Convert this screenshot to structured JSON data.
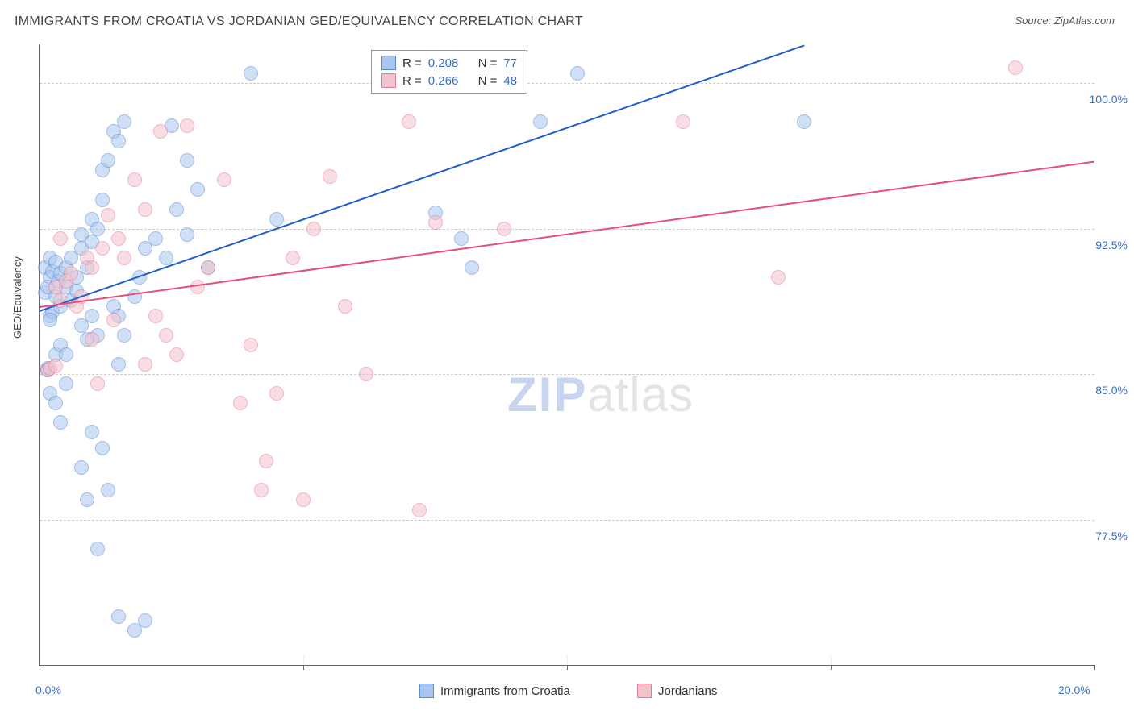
{
  "title": "IMMIGRANTS FROM CROATIA VS JORDANIAN GED/EQUIVALENCY CORRELATION CHART",
  "source": "Source: ZipAtlas.com",
  "ylabel": "GED/Equivalency",
  "watermark_zip": "ZIP",
  "watermark_atlas": "atlas",
  "chart": {
    "type": "scatter",
    "xlim": [
      0,
      20
    ],
    "ylim": [
      70,
      102
    ],
    "background_color": "#ffffff",
    "grid_color": "#cccccc",
    "axis_color": "#666666",
    "x_ticks": [
      0,
      5,
      10,
      15,
      20
    ],
    "x_tick_labels": {
      "0": "0.0%",
      "20": "20.0%"
    },
    "y_grid_values": [
      77.5,
      85.0,
      92.5,
      100.0
    ],
    "y_tick_labels": [
      "77.5%",
      "85.0%",
      "92.5%",
      "100.0%"
    ],
    "tick_label_color": "#3b6fc9",
    "tick_label_fontsize": 14,
    "point_radius": 9,
    "point_opacity": 0.55,
    "series": [
      {
        "name": "Immigrants from Croatia",
        "fill_color": "#a9c6ee",
        "stroke_color": "#5a8ad0",
        "trend_color": "#1f5fc9",
        "R": "0.208",
        "N": "77",
        "trend": {
          "x1": 0,
          "y1": 88.3,
          "x2": 14.5,
          "y2": 102
        },
        "points": [
          [
            0.1,
            90.5
          ],
          [
            0.1,
            89.2
          ],
          [
            0.2,
            88.0
          ],
          [
            0.2,
            90.0
          ],
          [
            0.15,
            89.5
          ],
          [
            0.2,
            91.0
          ],
          [
            0.25,
            90.3
          ],
          [
            0.3,
            90.8
          ],
          [
            0.3,
            89.0
          ],
          [
            0.25,
            88.2
          ],
          [
            0.35,
            89.8
          ],
          [
            0.4,
            90.2
          ],
          [
            0.4,
            88.5
          ],
          [
            0.5,
            89.5
          ],
          [
            0.5,
            90.5
          ],
          [
            0.6,
            91.0
          ],
          [
            0.6,
            88.8
          ],
          [
            0.7,
            90.0
          ],
          [
            0.7,
            89.3
          ],
          [
            0.8,
            91.5
          ],
          [
            0.8,
            92.2
          ],
          [
            0.9,
            90.5
          ],
          [
            1.0,
            91.8
          ],
          [
            1.0,
            93.0
          ],
          [
            1.1,
            92.5
          ],
          [
            1.2,
            94.0
          ],
          [
            1.2,
            95.5
          ],
          [
            1.3,
            96.0
          ],
          [
            1.4,
            97.5
          ],
          [
            1.5,
            97.0
          ],
          [
            1.6,
            98.0
          ],
          [
            1.1,
            87.0
          ],
          [
            0.3,
            86.0
          ],
          [
            0.15,
            85.3
          ],
          [
            0.15,
            85.2
          ],
          [
            0.4,
            86.5
          ],
          [
            0.5,
            86.0
          ],
          [
            0.8,
            87.5
          ],
          [
            0.9,
            86.8
          ],
          [
            1.0,
            88.0
          ],
          [
            1.4,
            88.5
          ],
          [
            1.5,
            88.0
          ],
          [
            1.6,
            87.0
          ],
          [
            1.8,
            89.0
          ],
          [
            1.9,
            90.0
          ],
          [
            2.0,
            91.5
          ],
          [
            2.2,
            92.0
          ],
          [
            2.4,
            91.0
          ],
          [
            2.6,
            93.5
          ],
          [
            2.8,
            92.2
          ],
          [
            1.0,
            82.0
          ],
          [
            1.2,
            81.2
          ],
          [
            1.3,
            79.0
          ],
          [
            0.8,
            80.2
          ],
          [
            0.9,
            78.5
          ],
          [
            1.1,
            76.0
          ],
          [
            1.5,
            72.5
          ],
          [
            2.0,
            72.3
          ],
          [
            1.8,
            71.8
          ],
          [
            0.2,
            84.0
          ],
          [
            0.3,
            83.5
          ],
          [
            0.4,
            82.5
          ],
          [
            0.2,
            87.8
          ],
          [
            0.5,
            84.5
          ],
          [
            4.0,
            100.5
          ],
          [
            4.5,
            93.0
          ],
          [
            7.5,
            93.3
          ],
          [
            8.0,
            92.0
          ],
          [
            8.2,
            90.5
          ],
          [
            9.5,
            98.0
          ],
          [
            10.2,
            100.5
          ],
          [
            14.5,
            98.0
          ],
          [
            1.5,
            85.5
          ],
          [
            2.5,
            97.8
          ],
          [
            2.8,
            96.0
          ],
          [
            3.0,
            94.5
          ],
          [
            3.2,
            90.5
          ]
        ]
      },
      {
        "name": "Jordanians",
        "fill_color": "#f3c2cd",
        "stroke_color": "#e67a96",
        "trend_color": "#e64d7a",
        "R": "0.266",
        "N": "48",
        "trend": {
          "x1": 0,
          "y1": 88.5,
          "x2": 20,
          "y2": 96.0
        },
        "points": [
          [
            0.3,
            89.5
          ],
          [
            0.4,
            88.8
          ],
          [
            0.5,
            89.8
          ],
          [
            0.6,
            90.2
          ],
          [
            0.7,
            88.5
          ],
          [
            0.8,
            89.0
          ],
          [
            0.9,
            91.0
          ],
          [
            1.0,
            90.5
          ],
          [
            1.2,
            91.5
          ],
          [
            1.3,
            93.2
          ],
          [
            1.5,
            92.0
          ],
          [
            1.6,
            91.0
          ],
          [
            1.8,
            95.0
          ],
          [
            2.0,
            93.5
          ],
          [
            2.2,
            88.0
          ],
          [
            2.4,
            87.0
          ],
          [
            2.6,
            86.0
          ],
          [
            2.8,
            97.8
          ],
          [
            3.0,
            89.5
          ],
          [
            3.2,
            90.5
          ],
          [
            3.5,
            95.0
          ],
          [
            3.8,
            83.5
          ],
          [
            4.0,
            86.5
          ],
          [
            4.2,
            79.0
          ],
          [
            4.5,
            84.0
          ],
          [
            4.8,
            91.0
          ],
          [
            5.2,
            92.5
          ],
          [
            5.5,
            95.2
          ],
          [
            5.8,
            88.5
          ],
          [
            6.2,
            85.0
          ],
          [
            5.0,
            78.5
          ],
          [
            4.3,
            80.5
          ],
          [
            7.0,
            98.0
          ],
          [
            7.5,
            92.8
          ],
          [
            7.2,
            78.0
          ],
          [
            8.8,
            92.5
          ],
          [
            12.2,
            98.0
          ],
          [
            14.0,
            90.0
          ],
          [
            18.5,
            100.8
          ],
          [
            0.15,
            85.2
          ],
          [
            0.2,
            85.3
          ],
          [
            0.3,
            85.4
          ],
          [
            1.0,
            86.8
          ],
          [
            1.4,
            87.8
          ],
          [
            1.1,
            84.5
          ],
          [
            2.0,
            85.5
          ],
          [
            0.4,
            92.0
          ],
          [
            2.3,
            97.5
          ]
        ]
      }
    ]
  },
  "legend_bottom": [
    {
      "label": "Immigrants from Croatia",
      "fill": "#a9c6ee",
      "stroke": "#5a8ad0"
    },
    {
      "label": "Jordanians",
      "fill": "#f3c2cd",
      "stroke": "#e67a96"
    }
  ]
}
